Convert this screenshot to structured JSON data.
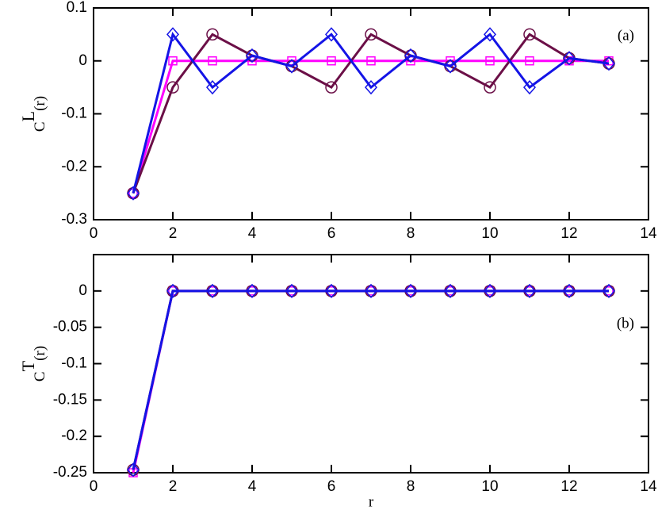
{
  "chart_data": [
    {
      "type": "line",
      "annotation": "(a)",
      "ylabel": {
        "base": "C",
        "sup": "L",
        "tail": "(r)"
      },
      "xlim": [
        0,
        14
      ],
      "xticks": [
        0,
        2,
        4,
        6,
        8,
        10,
        12,
        14
      ],
      "ylim": [
        -0.3,
        0.1
      ],
      "yticks": [
        -0.3,
        -0.2,
        -0.1,
        0,
        0.1
      ],
      "x": [
        1,
        2,
        3,
        4,
        5,
        6,
        7,
        8,
        9,
        10,
        11,
        12,
        13
      ],
      "series": [
        {
          "marker": "square",
          "color": "#ff00ff",
          "values": [
            -0.25,
            0,
            0,
            0,
            0,
            0,
            0,
            0,
            0,
            0,
            0,
            0,
            0
          ]
        },
        {
          "marker": "circle",
          "color": "#6b0f47",
          "values": [
            -0.25,
            -0.05,
            0.05,
            0.01,
            -0.01,
            -0.05,
            0.05,
            0.01,
            -0.01,
            -0.05,
            0.05,
            0.005,
            -0.005
          ]
        },
        {
          "marker": "diamond",
          "color": "#1414e6",
          "values": [
            -0.25,
            0.05,
            -0.05,
            0.01,
            -0.01,
            0.05,
            -0.05,
            0.01,
            -0.01,
            0.05,
            -0.05,
            0.005,
            -0.005
          ]
        }
      ]
    },
    {
      "type": "line",
      "annotation": "(b)",
      "xlabel": "r",
      "ylabel": {
        "base": "C",
        "sup": "T",
        "tail": "(r)"
      },
      "xlim": [
        0,
        14
      ],
      "xticks": [
        0,
        2,
        4,
        6,
        8,
        10,
        12,
        14
      ],
      "ylim": [
        -0.25,
        0.05
      ],
      "yticks": [
        -0.25,
        -0.2,
        -0.15,
        -0.1,
        -0.05,
        0
      ],
      "x": [
        1,
        2,
        3,
        4,
        5,
        6,
        7,
        8,
        9,
        10,
        11,
        12,
        13
      ],
      "series": [
        {
          "marker": "square",
          "color": "#ff00ff",
          "values": [
            -0.25,
            0,
            0,
            0,
            0,
            0,
            0,
            0,
            0,
            0,
            0,
            0,
            0
          ]
        },
        {
          "marker": "circle",
          "color": "#6b0f47",
          "values": [
            -0.246,
            0,
            0,
            0,
            0,
            0,
            0,
            0,
            0,
            0,
            0,
            0,
            0
          ]
        },
        {
          "marker": "diamond",
          "color": "#1414e6",
          "values": [
            -0.246,
            0,
            0,
            0,
            0,
            0,
            0,
            0,
            0,
            0,
            0,
            0,
            0
          ]
        }
      ]
    }
  ]
}
